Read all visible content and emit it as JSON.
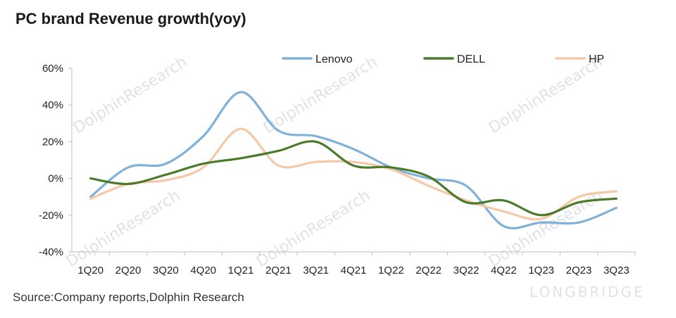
{
  "title": "PC brand Revenue growth(yoy)",
  "source": "Source:Company reports,Dolphin Research",
  "watermarks": {
    "dolphin": "DolphinResearch",
    "longbridge": "LONGBRIDGE"
  },
  "chart_data": {
    "type": "line",
    "categories": [
      "1Q20",
      "2Q20",
      "3Q20",
      "4Q20",
      "1Q21",
      "2Q21",
      "3Q21",
      "4Q21",
      "1Q22",
      "2Q22",
      "3Q22",
      "4Q22",
      "1Q23",
      "2Q23",
      "3Q23"
    ],
    "ylim": [
      -40,
      60
    ],
    "yticks": [
      -40,
      -20,
      0,
      20,
      40,
      60
    ],
    "ytick_labels": [
      "-40%",
      "-20%",
      "0%",
      "20%",
      "40%",
      "60%"
    ],
    "grid": false,
    "legend_position": "top",
    "series": [
      {
        "name": "Lenovo",
        "color": "#7fb1d9",
        "values": [
          -10,
          6,
          8,
          23,
          47,
          26,
          23,
          16,
          6,
          0,
          -4,
          -26,
          -24,
          -24,
          -16
        ]
      },
      {
        "name": "DELL",
        "color": "#4a7a2a",
        "values": [
          0,
          -3,
          2,
          8,
          11,
          15,
          20,
          7,
          6,
          1,
          -13,
          -12,
          -20,
          -13,
          -11
        ]
      },
      {
        "name": "HP",
        "color": "#f5c9a8",
        "values": [
          -11,
          -3,
          -1,
          6,
          27,
          7,
          9,
          9,
          5,
          -4,
          -12,
          -18,
          -22,
          -10,
          -7
        ]
      }
    ]
  }
}
